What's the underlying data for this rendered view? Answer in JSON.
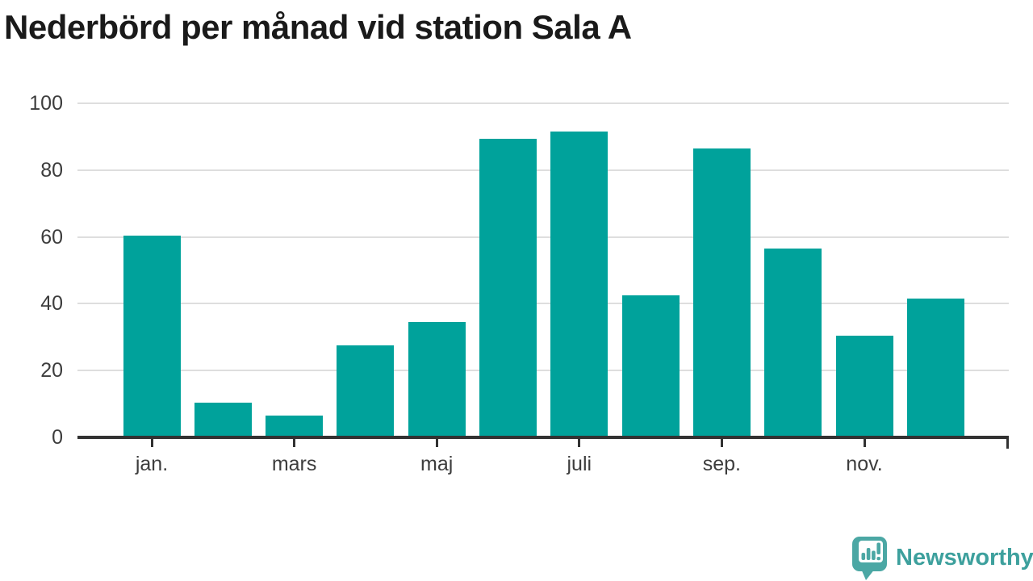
{
  "header": {
    "title": "Nederbörd per månad vid station Sala A"
  },
  "chart_data": {
    "type": "bar",
    "title": "Nederbörd per månad vid station Sala A",
    "xlabel": "",
    "ylabel": "",
    "ylim": [
      0,
      100
    ],
    "y_ticks": [
      0,
      20,
      40,
      60,
      80,
      100
    ],
    "grid": true,
    "legend": false,
    "bar_count": 12,
    "values": [
      60,
      10,
      6,
      27,
      34,
      89,
      91,
      42,
      86,
      56,
      30,
      41
    ],
    "x_tick_labels": [
      "jan.",
      "mars",
      "maj",
      "juli",
      "sep.",
      "nov."
    ],
    "x_tick_bar_indices": [
      0,
      2,
      4,
      6,
      8,
      10
    ],
    "colors": {
      "bar": "#00a29b",
      "axis": "#323232",
      "grid": "#dedede",
      "tick_label": "#3d3d3d",
      "title": "#1a1a1a"
    }
  },
  "branding": {
    "logo_text": "Newsworthy",
    "logo_text_color": "#3da09d",
    "logo_mark_color": "#4ba7a4",
    "logo_icon": "newsworthy-chart-speech-bubble"
  }
}
